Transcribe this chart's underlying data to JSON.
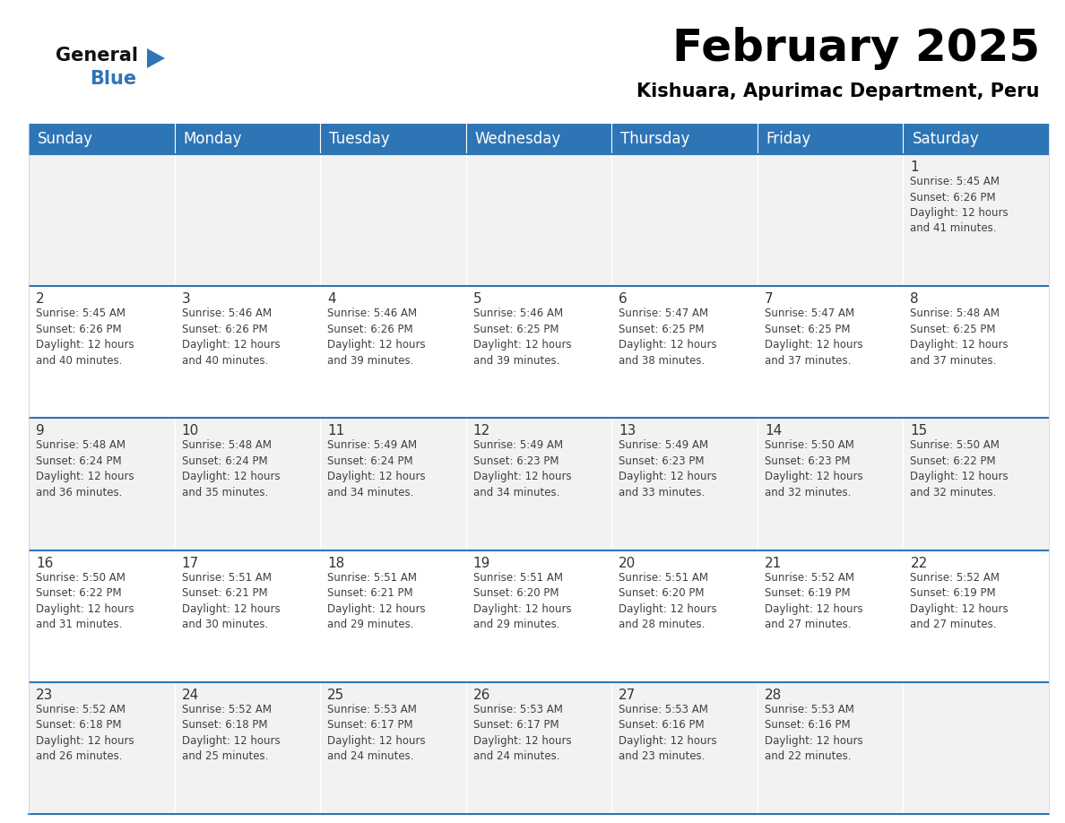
{
  "title": "February 2025",
  "subtitle": "Kishuara, Apurimac Department, Peru",
  "header_bg": "#2E75B6",
  "header_text_color": "#FFFFFF",
  "cell_bg_light": "#F2F2F2",
  "cell_bg_white": "#FFFFFF",
  "border_color": "#2E75B6",
  "text_color": "#404040",
  "day_number_color": "#333333",
  "day_headers": [
    "Sunday",
    "Monday",
    "Tuesday",
    "Wednesday",
    "Thursday",
    "Friday",
    "Saturday"
  ],
  "calendar": [
    [
      {
        "day": "",
        "info": ""
      },
      {
        "day": "",
        "info": ""
      },
      {
        "day": "",
        "info": ""
      },
      {
        "day": "",
        "info": ""
      },
      {
        "day": "",
        "info": ""
      },
      {
        "day": "",
        "info": ""
      },
      {
        "day": "1",
        "info": "Sunrise: 5:45 AM\nSunset: 6:26 PM\nDaylight: 12 hours\nand 41 minutes."
      }
    ],
    [
      {
        "day": "2",
        "info": "Sunrise: 5:45 AM\nSunset: 6:26 PM\nDaylight: 12 hours\nand 40 minutes."
      },
      {
        "day": "3",
        "info": "Sunrise: 5:46 AM\nSunset: 6:26 PM\nDaylight: 12 hours\nand 40 minutes."
      },
      {
        "day": "4",
        "info": "Sunrise: 5:46 AM\nSunset: 6:26 PM\nDaylight: 12 hours\nand 39 minutes."
      },
      {
        "day": "5",
        "info": "Sunrise: 5:46 AM\nSunset: 6:25 PM\nDaylight: 12 hours\nand 39 minutes."
      },
      {
        "day": "6",
        "info": "Sunrise: 5:47 AM\nSunset: 6:25 PM\nDaylight: 12 hours\nand 38 minutes."
      },
      {
        "day": "7",
        "info": "Sunrise: 5:47 AM\nSunset: 6:25 PM\nDaylight: 12 hours\nand 37 minutes."
      },
      {
        "day": "8",
        "info": "Sunrise: 5:48 AM\nSunset: 6:25 PM\nDaylight: 12 hours\nand 37 minutes."
      }
    ],
    [
      {
        "day": "9",
        "info": "Sunrise: 5:48 AM\nSunset: 6:24 PM\nDaylight: 12 hours\nand 36 minutes."
      },
      {
        "day": "10",
        "info": "Sunrise: 5:48 AM\nSunset: 6:24 PM\nDaylight: 12 hours\nand 35 minutes."
      },
      {
        "day": "11",
        "info": "Sunrise: 5:49 AM\nSunset: 6:24 PM\nDaylight: 12 hours\nand 34 minutes."
      },
      {
        "day": "12",
        "info": "Sunrise: 5:49 AM\nSunset: 6:23 PM\nDaylight: 12 hours\nand 34 minutes."
      },
      {
        "day": "13",
        "info": "Sunrise: 5:49 AM\nSunset: 6:23 PM\nDaylight: 12 hours\nand 33 minutes."
      },
      {
        "day": "14",
        "info": "Sunrise: 5:50 AM\nSunset: 6:23 PM\nDaylight: 12 hours\nand 32 minutes."
      },
      {
        "day": "15",
        "info": "Sunrise: 5:50 AM\nSunset: 6:22 PM\nDaylight: 12 hours\nand 32 minutes."
      }
    ],
    [
      {
        "day": "16",
        "info": "Sunrise: 5:50 AM\nSunset: 6:22 PM\nDaylight: 12 hours\nand 31 minutes."
      },
      {
        "day": "17",
        "info": "Sunrise: 5:51 AM\nSunset: 6:21 PM\nDaylight: 12 hours\nand 30 minutes."
      },
      {
        "day": "18",
        "info": "Sunrise: 5:51 AM\nSunset: 6:21 PM\nDaylight: 12 hours\nand 29 minutes."
      },
      {
        "day": "19",
        "info": "Sunrise: 5:51 AM\nSunset: 6:20 PM\nDaylight: 12 hours\nand 29 minutes."
      },
      {
        "day": "20",
        "info": "Sunrise: 5:51 AM\nSunset: 6:20 PM\nDaylight: 12 hours\nand 28 minutes."
      },
      {
        "day": "21",
        "info": "Sunrise: 5:52 AM\nSunset: 6:19 PM\nDaylight: 12 hours\nand 27 minutes."
      },
      {
        "day": "22",
        "info": "Sunrise: 5:52 AM\nSunset: 6:19 PM\nDaylight: 12 hours\nand 27 minutes."
      }
    ],
    [
      {
        "day": "23",
        "info": "Sunrise: 5:52 AM\nSunset: 6:18 PM\nDaylight: 12 hours\nand 26 minutes."
      },
      {
        "day": "24",
        "info": "Sunrise: 5:52 AM\nSunset: 6:18 PM\nDaylight: 12 hours\nand 25 minutes."
      },
      {
        "day": "25",
        "info": "Sunrise: 5:53 AM\nSunset: 6:17 PM\nDaylight: 12 hours\nand 24 minutes."
      },
      {
        "day": "26",
        "info": "Sunrise: 5:53 AM\nSunset: 6:17 PM\nDaylight: 12 hours\nand 24 minutes."
      },
      {
        "day": "27",
        "info": "Sunrise: 5:53 AM\nSunset: 6:16 PM\nDaylight: 12 hours\nand 23 minutes."
      },
      {
        "day": "28",
        "info": "Sunrise: 5:53 AM\nSunset: 6:16 PM\nDaylight: 12 hours\nand 22 minutes."
      },
      {
        "day": "",
        "info": ""
      }
    ]
  ],
  "logo_general_color": "#111111",
  "logo_blue_color": "#2E75B6",
  "logo_triangle_color": "#2E75B6",
  "title_fontsize": 36,
  "subtitle_fontsize": 15,
  "header_fontsize": 12,
  "day_num_fontsize": 11,
  "info_fontsize": 8.5
}
